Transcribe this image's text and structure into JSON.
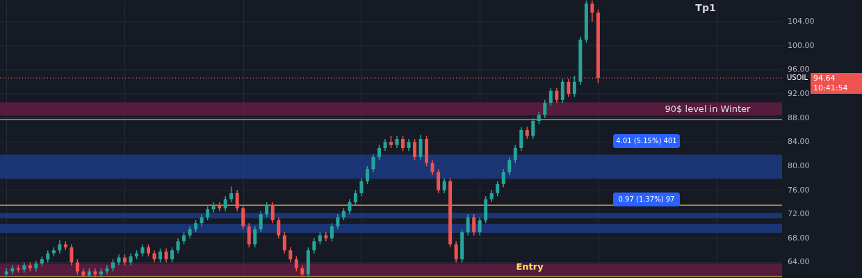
{
  "chart_data": {
    "type": "candlestick",
    "categories": [
      null,
      null,
      null,
      null,
      null,
      null,
      null,
      null,
      null,
      null,
      null,
      null,
      null,
      null,
      null,
      null,
      null,
      null,
      null,
      null,
      null,
      null,
      null,
      null,
      null,
      null,
      null,
      null,
      null,
      null,
      null,
      null,
      null,
      null,
      null,
      null,
      null,
      null,
      null,
      null,
      null,
      null,
      null,
      null,
      null,
      null,
      null,
      null,
      null,
      null,
      null,
      null,
      null,
      null,
      null,
      null,
      null,
      null,
      null,
      null,
      null,
      null,
      null,
      null,
      null,
      null,
      null,
      null,
      null,
      null,
      null,
      null,
      null,
      null,
      null,
      null,
      null,
      null,
      null,
      null,
      null,
      null,
      null,
      null,
      null,
      null,
      null,
      null,
      null,
      null,
      null,
      null,
      null,
      null,
      null,
      null,
      null,
      null,
      null,
      null,
      null,
      null,
      null,
      null,
      null,
      null,
      null,
      null,
      null,
      null,
      null,
      null,
      null,
      null,
      null,
      null,
      null,
      null,
      null,
      null,
      null,
      null,
      null,
      null,
      null,
      null,
      null,
      null,
      null,
      null,
      null
    ],
    "ohlc": [
      [
        62,
        63,
        61.5,
        62.5
      ],
      [
        62.5,
        63.5,
        62,
        63
      ],
      [
        63,
        63.5,
        62.3,
        62.8
      ],
      [
        62.8,
        64,
        62.3,
        63.5
      ],
      [
        63.5,
        64,
        62.5,
        63
      ],
      [
        63,
        64.3,
        62.5,
        63.8
      ],
      [
        63.8,
        65,
        63.3,
        64.5
      ],
      [
        64.5,
        66,
        64,
        65.5
      ],
      [
        65.5,
        66.5,
        65,
        66
      ],
      [
        66,
        67.7,
        65.5,
        67
      ],
      [
        67,
        67.5,
        66,
        66.5
      ],
      [
        66.5,
        67,
        63.5,
        64
      ],
      [
        64,
        64.5,
        62,
        62.5
      ],
      [
        62.5,
        63,
        61.5,
        61.8
      ],
      [
        61.8,
        63,
        61.5,
        62.5
      ],
      [
        62.5,
        63,
        61.5,
        62
      ],
      [
        62,
        63,
        61.5,
        62.5
      ],
      [
        62.5,
        63.5,
        62,
        63
      ],
      [
        63,
        64.5,
        62.5,
        64
      ],
      [
        64,
        65.3,
        63.5,
        64.8
      ],
      [
        64.8,
        65.3,
        63.5,
        64
      ],
      [
        64,
        65.5,
        63.5,
        65
      ],
      [
        65,
        66,
        64.5,
        65.5
      ],
      [
        65.5,
        67,
        65,
        66.5
      ],
      [
        66.5,
        67,
        65,
        65.5
      ],
      [
        65.5,
        66,
        64,
        64.5
      ],
      [
        64.5,
        66.3,
        64,
        65.8
      ],
      [
        65.8,
        66.3,
        64,
        64.5
      ],
      [
        64.5,
        66.5,
        64,
        66
      ],
      [
        66,
        68,
        65.5,
        67.5
      ],
      [
        67.5,
        69,
        67,
        68.5
      ],
      [
        68.5,
        70,
        68,
        69.5
      ],
      [
        69.5,
        71,
        69,
        70.5
      ],
      [
        70.5,
        72,
        70,
        71.5
      ],
      [
        71.5,
        73.3,
        71,
        72.8
      ],
      [
        72.8,
        74,
        72.3,
        73.5
      ],
      [
        73.5,
        74,
        72.5,
        73
      ],
      [
        73,
        75,
        72.5,
        74.5
      ],
      [
        74.5,
        76.6,
        74,
        75.5
      ],
      [
        75.5,
        76,
        72.5,
        73
      ],
      [
        73,
        73.5,
        69.5,
        70
      ],
      [
        70,
        70.5,
        66.5,
        67
      ],
      [
        67,
        70,
        66.5,
        69.5
      ],
      [
        69.5,
        72.5,
        69,
        72
      ],
      [
        72,
        74,
        71.5,
        73.5
      ],
      [
        73.5,
        74,
        70.5,
        71
      ],
      [
        71,
        71.5,
        68,
        68.5
      ],
      [
        68.5,
        69,
        65.5,
        66
      ],
      [
        66,
        66.5,
        64,
        64.5
      ],
      [
        64.5,
        65,
        62.5,
        63
      ],
      [
        63,
        63.5,
        61.5,
        62
      ],
      [
        62,
        66.5,
        61.5,
        66
      ],
      [
        66,
        68,
        65.5,
        67.5
      ],
      [
        67.5,
        69,
        67,
        68.5
      ],
      [
        68.5,
        69,
        67.5,
        68
      ],
      [
        68,
        70.5,
        67.5,
        70
      ],
      [
        70,
        72,
        69.5,
        71.5
      ],
      [
        71.5,
        73,
        71,
        72.5
      ],
      [
        72.5,
        74.5,
        72,
        74
      ],
      [
        74,
        76,
        73.5,
        75.5
      ],
      [
        75.5,
        78,
        75,
        77.5
      ],
      [
        77.5,
        80,
        77,
        79.5
      ],
      [
        79.5,
        82,
        79,
        81.5
      ],
      [
        81.5,
        83.5,
        81,
        83
      ],
      [
        83,
        84.5,
        82.5,
        84
      ],
      [
        84,
        85,
        83,
        83.5
      ],
      [
        83.5,
        85,
        83,
        84.5
      ],
      [
        84.5,
        85,
        82.5,
        83
      ],
      [
        83,
        84.5,
        82.5,
        84
      ],
      [
        84,
        84.5,
        81,
        81.5
      ],
      [
        81.5,
        85.2,
        81,
        84.5
      ],
      [
        84.5,
        85,
        80,
        80.5
      ],
      [
        80.5,
        81,
        78.5,
        79
      ],
      [
        79,
        79.5,
        75.5,
        76
      ],
      [
        76,
        78,
        75.5,
        77.5
      ],
      [
        77.5,
        78,
        66.5,
        67
      ],
      [
        67,
        67.5,
        64,
        64.5
      ],
      [
        64.5,
        69.5,
        64,
        69
      ],
      [
        69,
        72,
        68.5,
        71.5
      ],
      [
        71.5,
        72,
        68.5,
        69
      ],
      [
        69,
        71.5,
        68.5,
        71
      ],
      [
        71,
        75,
        70.5,
        74.5
      ],
      [
        74.5,
        76,
        74,
        75.5
      ],
      [
        75.5,
        77.5,
        75,
        77
      ],
      [
        77,
        79.5,
        76.5,
        79
      ],
      [
        79,
        81.5,
        78.5,
        81
      ],
      [
        81,
        83.5,
        80.5,
        83
      ],
      [
        83,
        86.5,
        82.5,
        86
      ],
      [
        86,
        86.5,
        84.5,
        85
      ],
      [
        85,
        88,
        84.5,
        87.5
      ],
      [
        87.5,
        89,
        87,
        88.5
      ],
      [
        88.5,
        91,
        88,
        90.5
      ],
      [
        90.5,
        93,
        90,
        92.5
      ],
      [
        92.5,
        93,
        90.5,
        91
      ],
      [
        91,
        94.5,
        90.5,
        94
      ],
      [
        94,
        94.5,
        91.5,
        92
      ],
      [
        92,
        95,
        91.5,
        94
      ],
      [
        94,
        101.5,
        93.5,
        101
      ],
      [
        101,
        107.5,
        100.5,
        107
      ],
      [
        107,
        107.5,
        104,
        105.5
      ],
      [
        105.5,
        106,
        93.8,
        94.64
      ],
      null,
      null,
      null,
      null,
      null,
      null,
      null,
      null,
      null,
      null,
      null,
      null,
      null,
      null,
      null,
      null,
      null,
      null,
      null,
      null,
      null,
      null,
      null,
      null,
      null,
      null,
      null,
      null,
      null,
      null
    ],
    "colors": [
      "#26a69a",
      "#26a69a",
      "#ef5350",
      "#26a69a",
      "#ef5350",
      "#26a69a",
      "#26a69a",
      "#26a69a",
      "#26a69a",
      "#26a69a",
      "#ef5350",
      "#ef5350",
      "#ef5350",
      "#ef5350",
      "#26a69a",
      "#ef5350",
      "#26a69a",
      "#26a69a",
      "#26a69a",
      "#26a69a",
      "#ef5350",
      "#26a69a",
      "#26a69a",
      "#26a69a",
      "#ef5350",
      "#ef5350",
      "#26a69a",
      "#ef5350",
      "#26a69a",
      "#26a69a",
      "#26a69a",
      "#26a69a",
      "#26a69a",
      "#26a69a",
      "#26a69a",
      "#26a69a",
      "#ef5350",
      "#26a69a",
      "#26a69a",
      "#ef5350",
      "#ef5350",
      "#ef5350",
      "#26a69a",
      "#26a69a",
      "#26a69a",
      "#ef5350",
      "#ef5350",
      "#ef5350",
      "#ef5350",
      "#ef5350",
      "#ef5350",
      "#26a69a",
      "#26a69a",
      "#26a69a",
      "#ef5350",
      "#26a69a",
      "#26a69a",
      "#26a69a",
      "#26a69a",
      "#26a69a",
      "#26a69a",
      "#26a69a",
      "#26a69a",
      "#26a69a",
      "#26a69a",
      "#ef5350",
      "#26a69a",
      "#ef5350",
      "#26a69a",
      "#ef5350",
      "#26a69a",
      "#ef5350",
      "#ef5350",
      "#ef5350",
      "#26a69a",
      "#ef5350",
      "#ef5350",
      "#26a69a",
      "#26a69a",
      "#ef5350",
      "#26a69a",
      "#26a69a",
      "#26a69a",
      "#26a69a",
      "#26a69a",
      "#26a69a",
      "#26a69a",
      "#26a69a",
      "#ef5350",
      "#26a69a",
      "#26a69a",
      "#26a69a",
      "#26a69a",
      "#ef5350",
      "#26a69a",
      "#ef5350",
      "#26a69a",
      "#26a69a",
      "#26a69a",
      "#ef5350",
      "#ef5350",
      null,
      null,
      null,
      null,
      null,
      null,
      null,
      null,
      null,
      null,
      null,
      null,
      null,
      null,
      null,
      null,
      null,
      null,
      null,
      null,
      null,
      null,
      null,
      null,
      null,
      null,
      null,
      null,
      null,
      null
    ],
    "ylim": [
      61.4,
      107.6
    ],
    "yticks": [
      {
        "value": 64,
        "label": "64.00"
      },
      {
        "value": 68,
        "label": "68.00"
      },
      {
        "value": 72,
        "label": "72.00"
      },
      {
        "value": 76,
        "label": "76.00"
      },
      {
        "value": 80,
        "label": "80.00"
      },
      {
        "value": 84,
        "label": "84.00"
      },
      {
        "value": 88,
        "label": "88.00"
      },
      {
        "value": 92,
        "label": "92.00"
      },
      {
        "value": 96,
        "label": "96.00"
      },
      {
        "value": 100,
        "label": "100.00"
      },
      {
        "value": 104,
        "label": "104.00"
      }
    ],
    "grid": true,
    "tick_labels": "y",
    "ref_lines": [
      {
        "axis": "y",
        "value": 87.7,
        "label": null,
        "color": "#c8963c",
        "line_style": "solid"
      },
      {
        "axis": "y",
        "value": 73.5,
        "label": null,
        "color": "#c8963c",
        "line_style": "solid"
      },
      {
        "axis": "y",
        "value": 61.7,
        "label": null,
        "color": "#c8963c",
        "line_style": "solid"
      },
      {
        "axis": "y",
        "value": 94.64,
        "label": "USOIL",
        "color": "#ef5350",
        "line_style": "dotted"
      }
    ],
    "bands": [
      {
        "axis": "y",
        "from": 88.4,
        "to": 90.6,
        "label": "90$ level in Winter",
        "color": "#6b1d45"
      },
      {
        "axis": "y",
        "from": 77.9,
        "to": 81.9,
        "label": null,
        "color": "#1e3f8f"
      },
      {
        "axis": "y",
        "from": 71.3,
        "to": 72.2,
        "label": null,
        "color": "#1e3f8f"
      },
      {
        "axis": "y",
        "from": 68.9,
        "to": 70.4,
        "label": null,
        "color": "#1e3f8f"
      },
      {
        "axis": "y",
        "from": 61.9,
        "to": 63.8,
        "label": null,
        "color": "#6b1d45"
      }
    ],
    "annotations": [
      "Tp1",
      "Entry",
      "4.01 (5.15%) 401",
      "0.97 (1.37%) 97",
      "10:41:54",
      "94.64"
    ]
  }
}
